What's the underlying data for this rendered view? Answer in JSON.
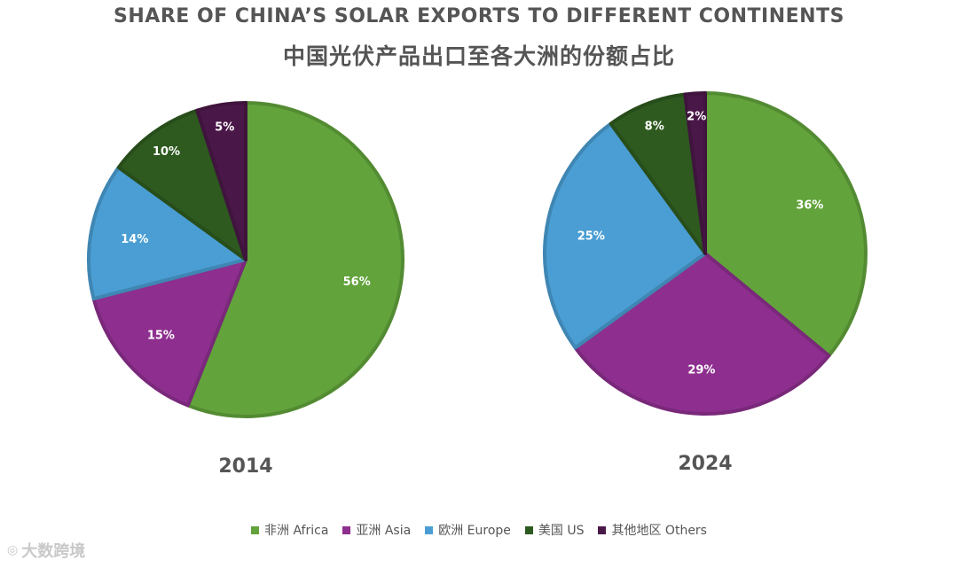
{
  "title_en": "SHARE OF CHINA’S SOLAR EXPORTS TO DIFFERENT CONTINENTS",
  "title_zh": "中国光伏产品出口至各大洲的份额占比",
  "colors": {
    "africa": "#62A33B",
    "asia": "#8E2F8F",
    "europe": "#4A9ED3",
    "us": "#2E5A1F",
    "others": "#4A1848"
  },
  "chart_data": [
    {
      "type": "pie",
      "title": "2014",
      "slices": [
        {
          "key": "africa",
          "label": "非洲 Africa",
          "value": 56,
          "text": "56%"
        },
        {
          "key": "asia",
          "label": "亚洲 Asia",
          "value": 15,
          "text": "15%"
        },
        {
          "key": "europe",
          "label": "欧洲 Europe",
          "value": 14,
          "text": "14%"
        },
        {
          "key": "us",
          "label": "美国 US",
          "value": 10,
          "text": "10%"
        },
        {
          "key": "others",
          "label": "其他地区 Others",
          "value": 5,
          "text": "5%"
        }
      ]
    },
    {
      "type": "pie",
      "title": "2024",
      "slices": [
        {
          "key": "africa",
          "label": "非洲 Africa",
          "value": 36,
          "text": "36%"
        },
        {
          "key": "asia",
          "label": "亚洲 Asia",
          "value": 29,
          "text": "29%"
        },
        {
          "key": "europe",
          "label": "欧洲 Europe",
          "value": 25,
          "text": "25%"
        },
        {
          "key": "us",
          "label": "美国 US",
          "value": 8,
          "text": "8%"
        },
        {
          "key": "others",
          "label": "其他地区 Others",
          "value": 2,
          "text": "2%"
        }
      ]
    }
  ],
  "legend": [
    {
      "key": "africa",
      "label": "非洲 Africa"
    },
    {
      "key": "asia",
      "label": "亚洲 Asia"
    },
    {
      "key": "europe",
      "label": "欧洲 Europe"
    },
    {
      "key": "us",
      "label": "美国 US"
    },
    {
      "key": "others",
      "label": "其他地区 Others"
    }
  ],
  "watermark": {
    "text": "大数跨境",
    "icon": "logo-icon"
  }
}
